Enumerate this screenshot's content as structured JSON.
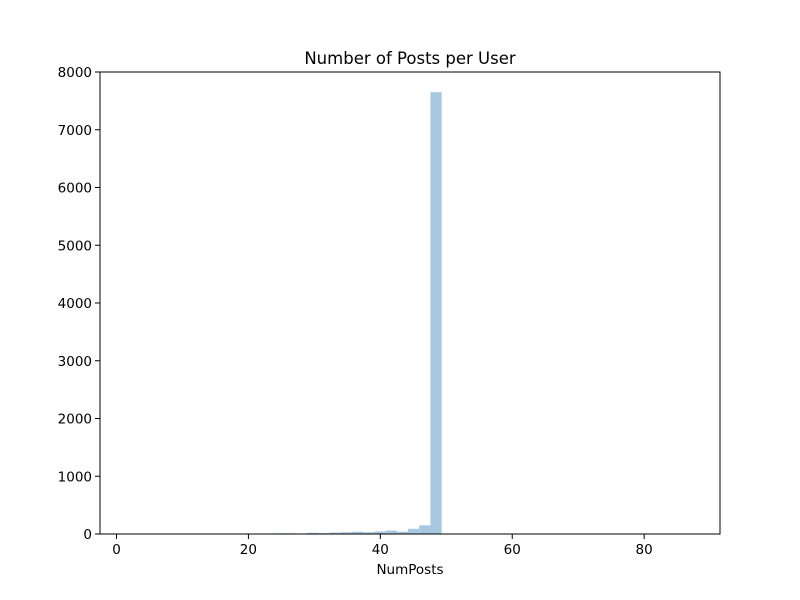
{
  "chart_data": {
    "type": "bar",
    "title": "Number of Posts per User",
    "xlabel": "NumPosts",
    "ylabel": "",
    "xlim": [
      -2.5,
      91.5
    ],
    "ylim": [
      0,
      8000
    ],
    "x_ticks": [
      0,
      20,
      40,
      60,
      80
    ],
    "y_ticks": [
      0,
      1000,
      2000,
      3000,
      4000,
      5000,
      6000,
      7000,
      8000
    ],
    "grid": false,
    "legend": "none",
    "bar_color": "#a6c8e0",
    "bins": {
      "start": 0,
      "width": 1.7,
      "values": [
        0,
        0,
        0,
        0,
        0,
        0,
        0,
        0,
        0,
        0,
        4,
        4,
        8,
        8,
        12,
        12,
        8,
        20,
        15,
        25,
        30,
        40,
        30,
        45,
        60,
        40,
        90,
        150,
        7650,
        0,
        0,
        0,
        0,
        8,
        6,
        0,
        0,
        0,
        0,
        0,
        0,
        5,
        4,
        0,
        0,
        0,
        0,
        0,
        0,
        0,
        0,
        0
      ]
    }
  }
}
